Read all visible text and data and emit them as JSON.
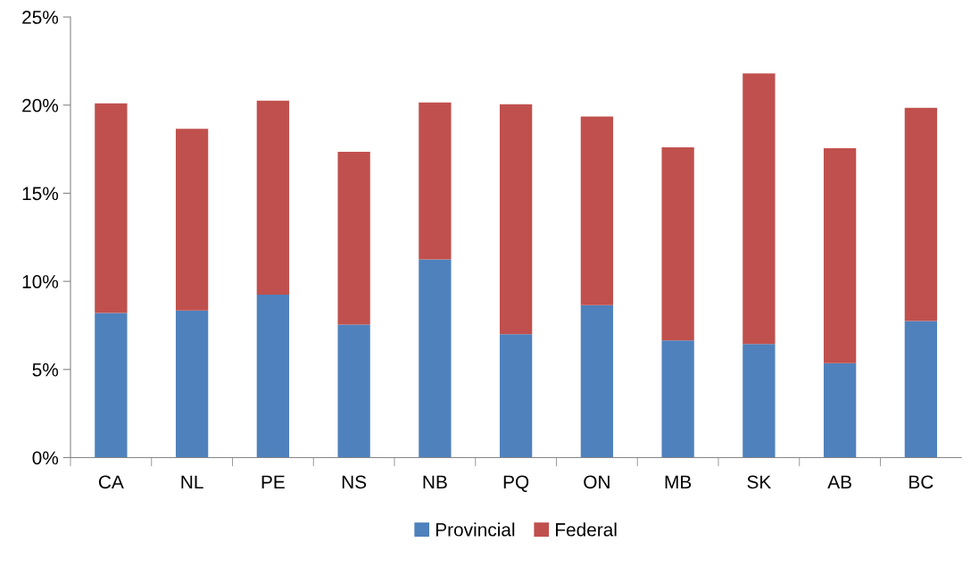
{
  "chart_data": {
    "type": "bar",
    "stacked": true,
    "categories": [
      "CA",
      "NL",
      "PE",
      "NS",
      "NB",
      "PQ",
      "ON",
      "MB",
      "SK",
      "AB",
      "BC"
    ],
    "series": [
      {
        "name": "Provincial",
        "color": "#4f81bd",
        "values": [
          8.2,
          8.35,
          9.25,
          7.55,
          11.25,
          7.0,
          8.65,
          6.65,
          6.45,
          5.35,
          7.75
        ]
      },
      {
        "name": "Federal",
        "color": "#c0504d",
        "values": [
          11.9,
          10.3,
          11.0,
          9.8,
          8.9,
          13.05,
          10.7,
          10.95,
          15.35,
          12.2,
          12.1
        ]
      }
    ],
    "ylim": [
      0,
      25
    ],
    "yticks": [
      {
        "value": 0,
        "label": "0%"
      },
      {
        "value": 5,
        "label": "5%"
      },
      {
        "value": 10,
        "label": "10%"
      },
      {
        "value": 15,
        "label": "15%"
      },
      {
        "value": 20,
        "label": "20%"
      },
      {
        "value": 25,
        "label": "25%"
      }
    ],
    "grid": false,
    "legend": "bottom"
  }
}
